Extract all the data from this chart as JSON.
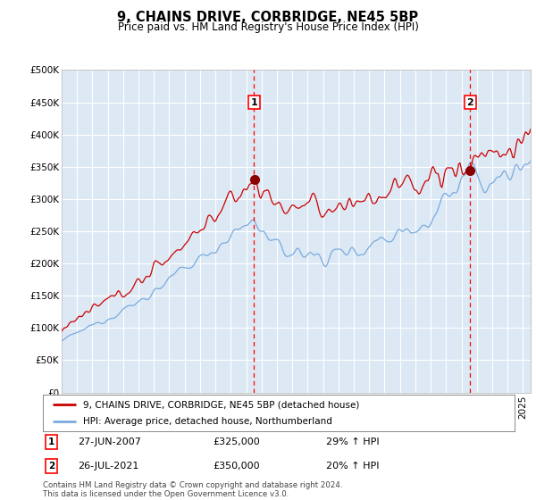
{
  "title": "9, CHAINS DRIVE, CORBRIDGE, NE45 5BP",
  "subtitle": "Price paid vs. HM Land Registry's House Price Index (HPI)",
  "legend_line1": "9, CHAINS DRIVE, CORBRIDGE, NE45 5BP (detached house)",
  "legend_line2": "HPI: Average price, detached house, Northumberland",
  "sale1_date": "27-JUN-2007",
  "sale1_price": "£325,000",
  "sale1_hpi": "29% ↑ HPI",
  "sale1_year": 2007.5,
  "sale1_value": 325000,
  "sale2_date": "26-JUL-2021",
  "sale2_price": "£350,000",
  "sale2_hpi": "20% ↑ HPI",
  "sale2_year": 2021.56,
  "sale2_value": 350000,
  "footer": "Contains HM Land Registry data © Crown copyright and database right 2024.\nThis data is licensed under the Open Government Licence v3.0.",
  "bg_color": "#dce9f5",
  "line_red": "#cc0000",
  "line_blue": "#7aaadd",
  "ylim": [
    0,
    500000
  ],
  "xlim_start": 1995.0,
  "xlim_end": 2025.5
}
